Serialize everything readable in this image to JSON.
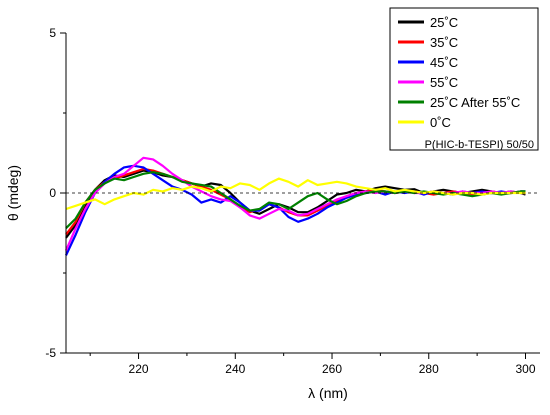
{
  "chart_data": {
    "type": "line",
    "title": "",
    "xlabel": "λ (nm)",
    "ylabel": "θ (mdeg)",
    "xlim": [
      205,
      303
    ],
    "ylim": [
      -5,
      5
    ],
    "x_ticks": [
      220,
      240,
      260,
      280,
      300
    ],
    "y_ticks": [
      -5,
      0,
      5
    ],
    "grid": false,
    "zero_line": "dashed",
    "legend_position": "top-right",
    "annotation": "P(HIC-b-TESPI) 50/50",
    "series": [
      {
        "name": "25˚C",
        "color": "#000000",
        "points": [
          [
            205,
            -1.4
          ],
          [
            207,
            -1.0
          ],
          [
            209,
            -0.4
          ],
          [
            211,
            0.1
          ],
          [
            213,
            0.4
          ],
          [
            215,
            0.55
          ],
          [
            217,
            0.5
          ],
          [
            219,
            0.6
          ],
          [
            221,
            0.7
          ],
          [
            223,
            0.65
          ],
          [
            225,
            0.55
          ],
          [
            227,
            0.5
          ],
          [
            229,
            0.4
          ],
          [
            231,
            0.3
          ],
          [
            233,
            0.2
          ],
          [
            235,
            0.3
          ],
          [
            237,
            0.25
          ],
          [
            239,
            0.0
          ],
          [
            241,
            -0.3
          ],
          [
            243,
            -0.55
          ],
          [
            245,
            -0.65
          ],
          [
            247,
            -0.5
          ],
          [
            249,
            -0.35
          ],
          [
            251,
            -0.45
          ],
          [
            253,
            -0.6
          ],
          [
            255,
            -0.6
          ],
          [
            257,
            -0.45
          ],
          [
            259,
            -0.25
          ],
          [
            261,
            -0.05
          ],
          [
            263,
            0.0
          ],
          [
            265,
            0.1
          ],
          [
            267,
            0.05
          ],
          [
            269,
            0.15
          ],
          [
            271,
            0.2
          ],
          [
            273,
            0.15
          ],
          [
            275,
            0.1
          ],
          [
            277,
            0.12
          ],
          [
            279,
            0.0
          ],
          [
            281,
            0.05
          ],
          [
            283,
            0.1
          ],
          [
            285,
            0.05
          ],
          [
            287,
            0.0
          ],
          [
            289,
            0.05
          ],
          [
            291,
            0.1
          ],
          [
            293,
            0.05
          ],
          [
            295,
            0.0
          ],
          [
            297,
            0.05
          ],
          [
            299,
            0.0
          ],
          [
            300,
            -0.05
          ]
        ]
      },
      {
        "name": "35˚C",
        "color": "#ff0000",
        "points": [
          [
            205,
            -1.3
          ],
          [
            207,
            -0.9
          ],
          [
            209,
            -0.3
          ],
          [
            211,
            0.1
          ],
          [
            213,
            0.35
          ],
          [
            215,
            0.45
          ],
          [
            217,
            0.55
          ],
          [
            219,
            0.65
          ],
          [
            221,
            0.75
          ],
          [
            223,
            0.7
          ],
          [
            225,
            0.6
          ],
          [
            227,
            0.5
          ],
          [
            229,
            0.4
          ],
          [
            231,
            0.3
          ],
          [
            233,
            0.2
          ],
          [
            235,
            0.1
          ],
          [
            237,
            -0.05
          ],
          [
            239,
            -0.2
          ],
          [
            241,
            -0.45
          ],
          [
            243,
            -0.6
          ],
          [
            245,
            -0.5
          ],
          [
            247,
            -0.35
          ],
          [
            249,
            -0.45
          ],
          [
            251,
            -0.6
          ],
          [
            253,
            -0.7
          ],
          [
            255,
            -0.7
          ],
          [
            257,
            -0.55
          ],
          [
            259,
            -0.4
          ],
          [
            261,
            -0.25
          ],
          [
            263,
            -0.1
          ],
          [
            265,
            0.0
          ],
          [
            267,
            0.05
          ],
          [
            269,
            0.1
          ],
          [
            271,
            0.05
          ],
          [
            273,
            0.0
          ],
          [
            275,
            0.05
          ],
          [
            277,
            0.05
          ],
          [
            279,
            0.0
          ],
          [
            281,
            -0.05
          ],
          [
            283,
            0.0
          ],
          [
            285,
            0.05
          ],
          [
            287,
            0.0
          ],
          [
            289,
            -0.05
          ],
          [
            291,
            0.0
          ],
          [
            293,
            0.05
          ],
          [
            295,
            0.0
          ],
          [
            297,
            0.0
          ],
          [
            299,
            0.05
          ],
          [
            300,
            0.0
          ]
        ]
      },
      {
        "name": "45˚C",
        "color": "#0000ff",
        "points": [
          [
            205,
            -1.95
          ],
          [
            207,
            -1.3
          ],
          [
            209,
            -0.6
          ],
          [
            211,
            0.0
          ],
          [
            213,
            0.35
          ],
          [
            215,
            0.6
          ],
          [
            217,
            0.8
          ],
          [
            219,
            0.85
          ],
          [
            221,
            0.8
          ],
          [
            223,
            0.6
          ],
          [
            225,
            0.4
          ],
          [
            227,
            0.2
          ],
          [
            229,
            0.1
          ],
          [
            231,
            -0.05
          ],
          [
            233,
            -0.3
          ],
          [
            235,
            -0.2
          ],
          [
            237,
            -0.3
          ],
          [
            239,
            -0.1
          ],
          [
            241,
            -0.3
          ],
          [
            243,
            -0.55
          ],
          [
            245,
            -0.55
          ],
          [
            247,
            -0.35
          ],
          [
            249,
            -0.45
          ],
          [
            251,
            -0.75
          ],
          [
            253,
            -0.9
          ],
          [
            255,
            -0.8
          ],
          [
            257,
            -0.65
          ],
          [
            259,
            -0.45
          ],
          [
            261,
            -0.3
          ],
          [
            263,
            -0.15
          ],
          [
            265,
            -0.05
          ],
          [
            267,
            0.0
          ],
          [
            269,
            0.05
          ],
          [
            271,
            -0.05
          ],
          [
            273,
            0.05
          ],
          [
            275,
            0.0
          ],
          [
            277,
            0.05
          ],
          [
            279,
            -0.05
          ],
          [
            281,
            0.05
          ],
          [
            283,
            0.0
          ],
          [
            285,
            -0.05
          ],
          [
            287,
            0.05
          ],
          [
            289,
            0.0
          ],
          [
            291,
            0.05
          ],
          [
            293,
            0.0
          ],
          [
            295,
            0.05
          ],
          [
            297,
            0.0
          ],
          [
            299,
            0.05
          ],
          [
            300,
            0.05
          ]
        ]
      },
      {
        "name": "55˚C",
        "color": "#ff00ff",
        "points": [
          [
            205,
            -1.8
          ],
          [
            207,
            -1.1
          ],
          [
            209,
            -0.5
          ],
          [
            211,
            0.0
          ],
          [
            213,
            0.3
          ],
          [
            215,
            0.5
          ],
          [
            217,
            0.6
          ],
          [
            219,
            0.85
          ],
          [
            221,
            1.1
          ],
          [
            223,
            1.05
          ],
          [
            225,
            0.85
          ],
          [
            227,
            0.6
          ],
          [
            229,
            0.4
          ],
          [
            231,
            0.2
          ],
          [
            233,
            0.05
          ],
          [
            235,
            -0.1
          ],
          [
            237,
            -0.2
          ],
          [
            239,
            -0.25
          ],
          [
            241,
            -0.45
          ],
          [
            243,
            -0.7
          ],
          [
            245,
            -0.8
          ],
          [
            247,
            -0.65
          ],
          [
            249,
            -0.5
          ],
          [
            251,
            -0.55
          ],
          [
            253,
            -0.7
          ],
          [
            255,
            -0.65
          ],
          [
            257,
            -0.5
          ],
          [
            259,
            -0.35
          ],
          [
            261,
            -0.2
          ],
          [
            263,
            -0.1
          ],
          [
            265,
            0.0
          ],
          [
            267,
            0.05
          ],
          [
            269,
            0.0
          ],
          [
            271,
            0.05
          ],
          [
            273,
            0.0
          ],
          [
            275,
            0.05
          ],
          [
            277,
            0.0
          ],
          [
            279,
            0.0
          ],
          [
            281,
            0.05
          ],
          [
            283,
            0.0
          ],
          [
            285,
            0.0
          ],
          [
            287,
            0.05
          ],
          [
            289,
            0.0
          ],
          [
            291,
            0.0
          ],
          [
            293,
            0.05
          ],
          [
            295,
            0.0
          ],
          [
            297,
            0.05
          ],
          [
            299,
            0.0
          ],
          [
            300,
            0.0
          ]
        ]
      },
      {
        "name": "25˚C After 55˚C",
        "color": "#008000",
        "points": [
          [
            205,
            -1.1
          ],
          [
            207,
            -0.8
          ],
          [
            209,
            -0.3
          ],
          [
            211,
            0.1
          ],
          [
            213,
            0.3
          ],
          [
            215,
            0.45
          ],
          [
            217,
            0.4
          ],
          [
            219,
            0.5
          ],
          [
            221,
            0.6
          ],
          [
            223,
            0.65
          ],
          [
            225,
            0.6
          ],
          [
            227,
            0.5
          ],
          [
            229,
            0.35
          ],
          [
            231,
            0.3
          ],
          [
            233,
            0.25
          ],
          [
            235,
            0.2
          ],
          [
            237,
            0.0
          ],
          [
            239,
            -0.2
          ],
          [
            241,
            -0.4
          ],
          [
            243,
            -0.55
          ],
          [
            245,
            -0.5
          ],
          [
            247,
            -0.3
          ],
          [
            249,
            -0.35
          ],
          [
            251,
            -0.5
          ],
          [
            253,
            -0.3
          ],
          [
            255,
            -0.1
          ],
          [
            257,
            0.0
          ],
          [
            259,
            -0.2
          ],
          [
            261,
            -0.35
          ],
          [
            263,
            -0.25
          ],
          [
            265,
            -0.1
          ],
          [
            267,
            0.0
          ],
          [
            269,
            0.05
          ],
          [
            271,
            0.05
          ],
          [
            273,
            0.0
          ],
          [
            275,
            0.05
          ],
          [
            277,
            0.0
          ],
          [
            279,
            0.05
          ],
          [
            281,
            0.0
          ],
          [
            283,
            -0.05
          ],
          [
            285,
            0.0
          ],
          [
            287,
            -0.05
          ],
          [
            289,
            -0.1
          ],
          [
            291,
            -0.05
          ],
          [
            293,
            0.0
          ],
          [
            295,
            -0.05
          ],
          [
            297,
            0.0
          ],
          [
            299,
            0.05
          ],
          [
            300,
            0.05
          ]
        ]
      },
      {
        "name": "0˚C",
        "color": "#ffff00",
        "points": [
          [
            205,
            -0.5
          ],
          [
            207,
            -0.4
          ],
          [
            209,
            -0.3
          ],
          [
            211,
            -0.2
          ],
          [
            213,
            -0.35
          ],
          [
            215,
            -0.2
          ],
          [
            217,
            -0.1
          ],
          [
            219,
            0.0
          ],
          [
            221,
            -0.05
          ],
          [
            223,
            0.1
          ],
          [
            225,
            0.05
          ],
          [
            227,
            0.15
          ],
          [
            229,
            0.1
          ],
          [
            231,
            0.2
          ],
          [
            233,
            0.15
          ],
          [
            235,
            0.05
          ],
          [
            237,
            0.2
          ],
          [
            239,
            0.15
          ],
          [
            241,
            0.3
          ],
          [
            243,
            0.25
          ],
          [
            245,
            0.1
          ],
          [
            247,
            0.3
          ],
          [
            249,
            0.45
          ],
          [
            251,
            0.35
          ],
          [
            253,
            0.2
          ],
          [
            255,
            0.4
          ],
          [
            257,
            0.25
          ],
          [
            259,
            0.3
          ],
          [
            261,
            0.35
          ],
          [
            263,
            0.3
          ],
          [
            265,
            0.2
          ],
          [
            267,
            0.15
          ],
          [
            269,
            0.1
          ],
          [
            271,
            0.15
          ],
          [
            273,
            0.05
          ],
          [
            275,
            0.1
          ],
          [
            277,
            0.05
          ],
          [
            279,
            0.0
          ],
          [
            281,
            0.05
          ],
          [
            283,
            0.0
          ],
          [
            285,
            -0.05
          ],
          [
            287,
            0.0
          ],
          [
            289,
            0.0
          ],
          [
            291,
            -0.05
          ],
          [
            293,
            0.0
          ],
          [
            295,
            0.0
          ],
          [
            297,
            0.0
          ],
          [
            299,
            0.0
          ],
          [
            300,
            0.0
          ]
        ]
      }
    ]
  }
}
